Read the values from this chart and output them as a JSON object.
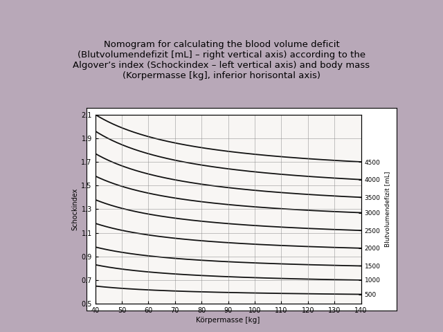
{
  "title_line1": "Nomogram for calculating the blood volume deficit",
  "title_line2": "(Blutvolumendefizit [mL] – right vertical axis) according to the",
  "title_line3": "Algover’s index (Schockindex – left vertical axis) and body mass",
  "title_line4": "(Korpermasse [kg], inferior horisontal axis)",
  "title_fontsize": 9.5,
  "bg_color": "#b8a8b8",
  "plot_bg": "#f8f6f4",
  "box_bg": "#ffffff",
  "x_min": 40,
  "x_max": 140,
  "x_ticks": [
    40,
    50,
    60,
    70,
    80,
    90,
    100,
    110,
    120,
    130,
    140
  ],
  "xlabel": "Körpermasse [kg]",
  "left_ylabel": "Schockindex",
  "right_ylabel": "Blutvolumendefizit [mL]",
  "y_left_min": 0.5,
  "y_left_max": 2.1,
  "y_left_ticks": [
    0.5,
    0.7,
    0.9,
    1.1,
    1.3,
    1.5,
    1.7,
    1.9,
    2.1
  ],
  "right_ticks": [
    500,
    1000,
    1500,
    2000,
    2500,
    3000,
    3500,
    4000,
    4500
  ],
  "line_color": "#111111",
  "grid_color": "#888888",
  "b_const": 22.4,
  "a_500": 0.44,
  "a_4500": 1.54,
  "curve_power": 1.0
}
